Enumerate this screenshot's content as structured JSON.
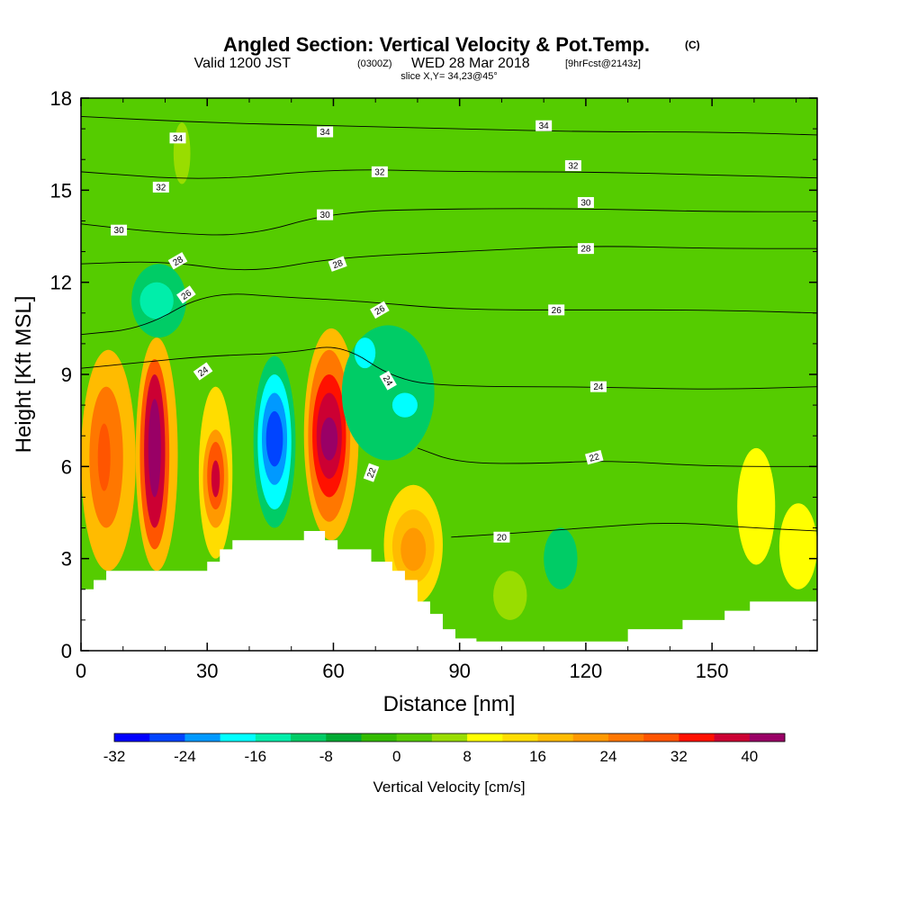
{
  "titles": {
    "main": "Angled Section: Vertical Velocity & Pot.Temp.",
    "copyright": "(C)",
    "valid_prefix": "Valid 1200 JST",
    "valid_utc": "(0300Z)",
    "valid_date": "WED 28 Mar 2018",
    "forecast": "[9hrFcst@2143z]",
    "slice": "slice X,Y= 34,23@45°"
  },
  "chart_data": {
    "type": "heatmap",
    "xlabel": "Distance [nm]",
    "ylabel": "Height [Kft MSL]",
    "xlim": [
      0,
      175
    ],
    "ylim": [
      0,
      18
    ],
    "x_ticks": [
      "0",
      "30",
      "60",
      "90",
      "120",
      "150"
    ],
    "x_tick_values": [
      0,
      30,
      60,
      90,
      120,
      150
    ],
    "y_ticks": [
      "0",
      "3",
      "6",
      "9",
      "12",
      "15",
      "18"
    ],
    "y_tick_values": [
      0,
      3,
      6,
      9,
      12,
      15,
      18
    ],
    "background_fill": {
      "name": "weak ascent / descent",
      "color": "#55cc00"
    },
    "terrain": [
      [
        0,
        2
      ],
      [
        3,
        2
      ],
      [
        3,
        2.3
      ],
      [
        6,
        2.3
      ],
      [
        6,
        2.6
      ],
      [
        30,
        2.6
      ],
      [
        30,
        2.9
      ],
      [
        33,
        2.9
      ],
      [
        33,
        3.3
      ],
      [
        36,
        3.3
      ],
      [
        36,
        3.6
      ],
      [
        53,
        3.6
      ],
      [
        53,
        3.9
      ],
      [
        58,
        3.9
      ],
      [
        58,
        3.6
      ],
      [
        61,
        3.6
      ],
      [
        61,
        3.3
      ],
      [
        69,
        3.3
      ],
      [
        69,
        2.9
      ],
      [
        74,
        2.9
      ],
      [
        74,
        2.6
      ],
      [
        77,
        2.6
      ],
      [
        77,
        2.3
      ],
      [
        80,
        2.3
      ],
      [
        80,
        1.6
      ],
      [
        83,
        1.6
      ],
      [
        83,
        1.2
      ],
      [
        86,
        1.2
      ],
      [
        86,
        0.7
      ],
      [
        89,
        0.7
      ],
      [
        89,
        0.4
      ],
      [
        94,
        0.4
      ],
      [
        94,
        0.3
      ],
      [
        130,
        0.3
      ],
      [
        130,
        0.7
      ],
      [
        143,
        0.7
      ],
      [
        143,
        1
      ],
      [
        153,
        1
      ],
      [
        153,
        1.3
      ],
      [
        159,
        1.3
      ],
      [
        159,
        1.6
      ],
      [
        175,
        1.6
      ]
    ],
    "vertical_velocity_cells": [
      {
        "x0": 0,
        "x1": 13,
        "y0": 2.6,
        "y1": 9.8,
        "value": 16
      },
      {
        "x0": 2,
        "x1": 10,
        "y0": 4.0,
        "y1": 8.6,
        "value": 24
      },
      {
        "x0": 4,
        "x1": 7,
        "y0": 5.2,
        "y1": 7.4,
        "value": 28
      },
      {
        "x0": 13,
        "x1": 23,
        "y0": 2.6,
        "y1": 10.2,
        "value": 16
      },
      {
        "x0": 14,
        "x1": 21,
        "y0": 3.3,
        "y1": 9.5,
        "value": 28
      },
      {
        "x0": 15,
        "x1": 20,
        "y0": 4.0,
        "y1": 9.0,
        "value": 36
      },
      {
        "x0": 16,
        "x1": 19,
        "y0": 5.0,
        "y1": 8.2,
        "value": 44
      },
      {
        "x0": 28,
        "x1": 36,
        "y0": 3.0,
        "y1": 8.6,
        "value": 12
      },
      {
        "x0": 29,
        "x1": 35,
        "y0": 4.0,
        "y1": 7.2,
        "value": 20
      },
      {
        "x0": 30,
        "x1": 34,
        "y0": 4.6,
        "y1": 6.8,
        "value": 28
      },
      {
        "x0": 31,
        "x1": 33,
        "y0": 5.0,
        "y1": 6.2,
        "value": 36
      },
      {
        "x0": 41,
        "x1": 51,
        "y0": 4.0,
        "y1": 9.6,
        "value": -12
      },
      {
        "x0": 42,
        "x1": 50,
        "y0": 4.6,
        "y1": 9.0,
        "value": -20
      },
      {
        "x0": 43,
        "x1": 49,
        "y0": 5.4,
        "y1": 8.4,
        "value": -24
      },
      {
        "x0": 44,
        "x1": 48,
        "y0": 6.0,
        "y1": 7.8,
        "value": -28
      },
      {
        "x0": 53,
        "x1": 66,
        "y0": 3.6,
        "y1": 10.5,
        "value": 16
      },
      {
        "x0": 54,
        "x1": 64,
        "y0": 4.2,
        "y1": 9.8,
        "value": 24
      },
      {
        "x0": 55,
        "x1": 63,
        "y0": 5.0,
        "y1": 9.0,
        "value": 32
      },
      {
        "x0": 56,
        "x1": 62,
        "y0": 5.6,
        "y1": 8.4,
        "value": 36
      },
      {
        "x0": 57,
        "x1": 61,
        "y0": 6.2,
        "y1": 7.6,
        "value": 40
      },
      {
        "x0": 72,
        "x1": 86,
        "y0": 1.5,
        "y1": 5.4,
        "value": 12
      },
      {
        "x0": 74,
        "x1": 84,
        "y0": 2.2,
        "y1": 4.6,
        "value": 16
      },
      {
        "x0": 76,
        "x1": 82,
        "y0": 2.6,
        "y1": 4.0,
        "value": 20
      },
      {
        "x0": 62,
        "x1": 84,
        "y0": 6.2,
        "y1": 10.6,
        "value": -12
      },
      {
        "x0": 65,
        "x1": 70,
        "y0": 9.2,
        "y1": 10.2,
        "value": -20
      },
      {
        "x0": 74,
        "x1": 80,
        "y0": 7.6,
        "y1": 8.4,
        "value": -20
      },
      {
        "x0": 12,
        "x1": 25,
        "y0": 10.2,
        "y1": 12.6,
        "value": -12
      },
      {
        "x0": 14,
        "x1": 22,
        "y0": 10.8,
        "y1": 12.0,
        "value": -16
      },
      {
        "x0": 156,
        "x1": 165,
        "y0": 2.8,
        "y1": 6.6,
        "value": 8
      },
      {
        "x0": 166,
        "x1": 175,
        "y0": 2.0,
        "y1": 4.8,
        "value": 8
      },
      {
        "x0": 110,
        "x1": 118,
        "y0": 2.0,
        "y1": 4.0,
        "value": -12
      },
      {
        "x0": 98,
        "x1": 106,
        "y0": 1.0,
        "y1": 2.6,
        "value": 4
      },
      {
        "x0": 22,
        "x1": 26,
        "y0": 15.2,
        "y1": 17.2,
        "value": 4
      }
    ],
    "potential_temperature_contours": [
      {
        "label": "34",
        "points": [
          [
            0,
            17.4
          ],
          [
            30,
            17.2
          ],
          [
            60,
            17.1
          ],
          [
            90,
            17.0
          ],
          [
            120,
            16.9
          ],
          [
            150,
            16.9
          ],
          [
            175,
            16.8
          ]
        ]
      },
      {
        "label": "32",
        "points": [
          [
            0,
            15.6
          ],
          [
            30,
            15.3
          ],
          [
            60,
            15.7
          ],
          [
            90,
            15.6
          ],
          [
            120,
            15.6
          ],
          [
            150,
            15.5
          ],
          [
            175,
            15.4
          ]
        ]
      },
      {
        "label": "30",
        "points": [
          [
            0,
            13.9
          ],
          [
            20,
            13.6
          ],
          [
            40,
            13.5
          ],
          [
            60,
            14.3
          ],
          [
            90,
            14.4
          ],
          [
            120,
            14.4
          ],
          [
            150,
            14.3
          ],
          [
            175,
            14.3
          ]
        ]
      },
      {
        "label": "28",
        "points": [
          [
            0,
            12.6
          ],
          [
            20,
            12.7
          ],
          [
            40,
            12.3
          ],
          [
            60,
            12.8
          ],
          [
            90,
            13.0
          ],
          [
            120,
            13.2
          ],
          [
            150,
            13.1
          ],
          [
            175,
            13.1
          ]
        ]
      },
      {
        "label": "26",
        "points": [
          [
            0,
            10.3
          ],
          [
            15,
            10.5
          ],
          [
            30,
            11.7
          ],
          [
            50,
            11.5
          ],
          [
            65,
            11.4
          ],
          [
            90,
            11.1
          ],
          [
            120,
            11.1
          ],
          [
            150,
            11.1
          ],
          [
            175,
            11.0
          ]
        ]
      },
      {
        "label": "24",
        "points": [
          [
            0,
            9.2
          ],
          [
            15,
            9.4
          ],
          [
            30,
            9.6
          ],
          [
            50,
            9.7
          ],
          [
            62,
            10.0
          ],
          [
            75,
            8.8
          ],
          [
            90,
            8.6
          ],
          [
            120,
            8.6
          ],
          [
            150,
            8.5
          ],
          [
            175,
            8.6
          ]
        ]
      },
      {
        "label": "22",
        "points": [
          [
            80,
            6.6
          ],
          [
            90,
            6.1
          ],
          [
            110,
            6.1
          ],
          [
            125,
            6.2
          ],
          [
            150,
            6.0
          ],
          [
            175,
            6.0
          ]
        ]
      },
      {
        "label": "20",
        "points": [
          [
            88,
            3.7
          ],
          [
            100,
            3.8
          ],
          [
            120,
            4.0
          ],
          [
            140,
            4.2
          ],
          [
            160,
            4.0
          ],
          [
            175,
            3.9
          ]
        ]
      }
    ],
    "contour_labels": [
      {
        "text": "34",
        "x": 23,
        "y": 16.7,
        "angle": 0
      },
      {
        "text": "34",
        "x": 58,
        "y": 16.9,
        "angle": 0
      },
      {
        "text": "34",
        "x": 110,
        "y": 17.1,
        "angle": 0
      },
      {
        "text": "32",
        "x": 19,
        "y": 15.1,
        "angle": 0
      },
      {
        "text": "32",
        "x": 71,
        "y": 15.6,
        "angle": 0
      },
      {
        "text": "32",
        "x": 117,
        "y": 15.8,
        "angle": 0
      },
      {
        "text": "30",
        "x": 9,
        "y": 13.7,
        "angle": 0
      },
      {
        "text": "30",
        "x": 58,
        "y": 14.2,
        "angle": 0
      },
      {
        "text": "30",
        "x": 120,
        "y": 14.6,
        "angle": 0
      },
      {
        "text": "28",
        "x": 23,
        "y": 12.7,
        "angle": -30
      },
      {
        "text": "28",
        "x": 61,
        "y": 12.6,
        "angle": -20
      },
      {
        "text": "28",
        "x": 120,
        "y": 13.1,
        "angle": 0
      },
      {
        "text": "26",
        "x": 25,
        "y": 11.6,
        "angle": -35
      },
      {
        "text": "26",
        "x": 71,
        "y": 11.1,
        "angle": -30
      },
      {
        "text": "26",
        "x": 113,
        "y": 11.1,
        "angle": 0
      },
      {
        "text": "24",
        "x": 29,
        "y": 9.1,
        "angle": -35
      },
      {
        "text": "24",
        "x": 73,
        "y": 8.8,
        "angle": 60
      },
      {
        "text": "24",
        "x": 123,
        "y": 8.6,
        "angle": 0
      },
      {
        "text": "22",
        "x": 69,
        "y": 5.8,
        "angle": -70
      },
      {
        "text": "22",
        "x": 122,
        "y": 6.3,
        "angle": -15
      },
      {
        "text": "20",
        "x": 100,
        "y": 3.7,
        "angle": 0
      }
    ],
    "colorbar": {
      "title": "Vertical Velocity [cm/s]",
      "tick_labels": [
        "-32",
        "-24",
        "-16",
        "-8",
        "0",
        "8",
        "16",
        "24",
        "32",
        "40"
      ],
      "tick_values": [
        -32,
        -24,
        -16,
        -8,
        0,
        8,
        16,
        24,
        32,
        40
      ],
      "min": -32,
      "max": 44,
      "colors": [
        "#0000ff",
        "#0044ff",
        "#0099ff",
        "#00ffff",
        "#00eeaa",
        "#00cc66",
        "#00aa33",
        "#33bb00",
        "#55cc00",
        "#99dd00",
        "#ffff00",
        "#ffdd00",
        "#ffbb00",
        "#ff9900",
        "#ff7700",
        "#ff5500",
        "#ff1100",
        "#cc0033",
        "#990066"
      ]
    }
  }
}
